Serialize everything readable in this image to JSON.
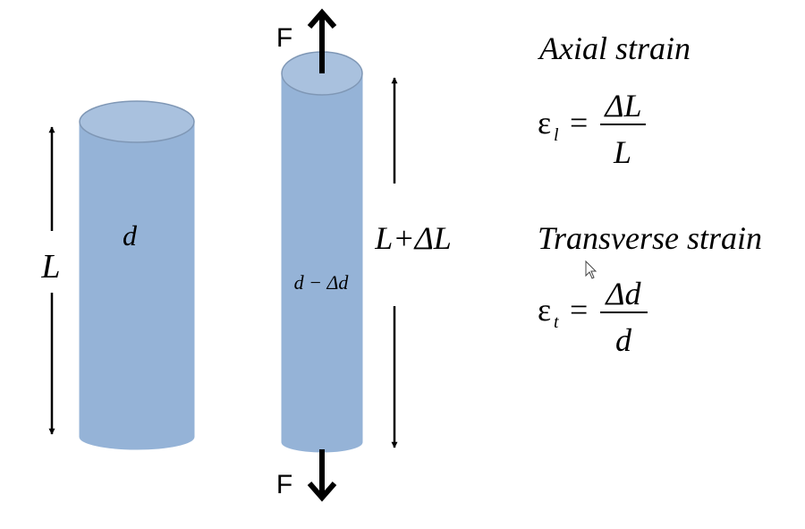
{
  "colors": {
    "cylinder_fill": "#95B3D7",
    "cylinder_top": "#A9C1DE",
    "cylinder_edge": "#7F97B5",
    "arrow": "#000000",
    "text": "#000000"
  },
  "left_cylinder": {
    "diameter_label": "d",
    "length_label": "L"
  },
  "right_cylinder": {
    "diameter_label": "d − Δd",
    "length_label": "L+ΔL",
    "force_top_label": "F",
    "force_bottom_label": "F"
  },
  "axial": {
    "title": "Axial strain",
    "symbol": "ε",
    "subscript": "l",
    "equals": "=",
    "numerator": "ΔL",
    "denominator": "L"
  },
  "transverse": {
    "title": "Transverse strain",
    "symbol": "ε",
    "subscript": "t",
    "equals": "=",
    "numerator": "Δd",
    "denominator": "d"
  },
  "icons": {
    "cursor": "mouse-pointer-icon"
  }
}
